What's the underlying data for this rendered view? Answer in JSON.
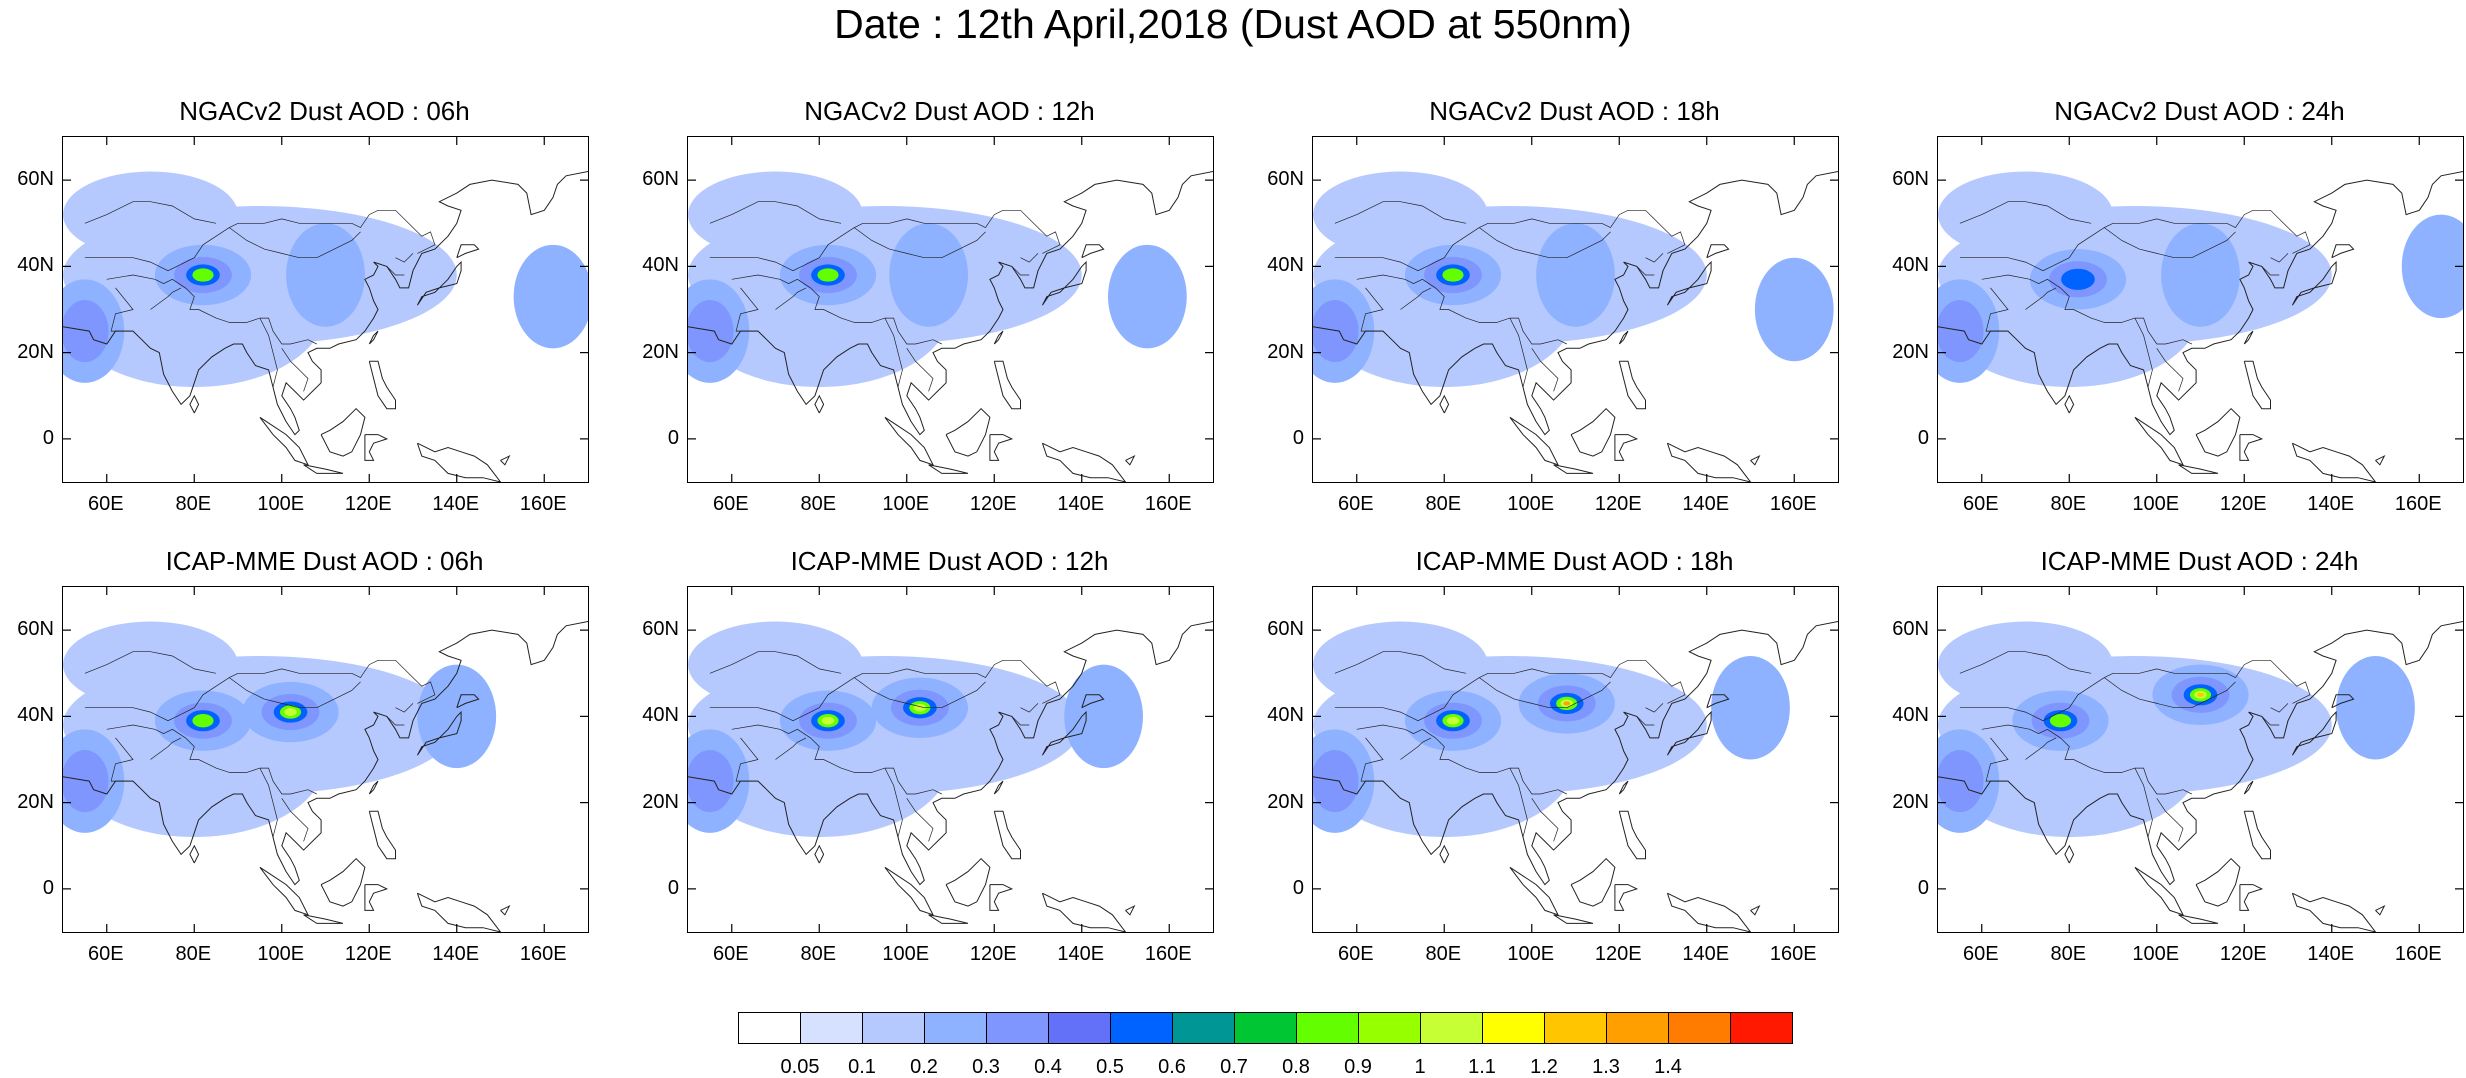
{
  "title": "Date : 12th April,2018 (Dust AOD at 550nm)",
  "rows": [
    {
      "model": "NGACv2",
      "panels": [
        {
          "title": "NGACv2 Dust AOD : 06h",
          "lead": "06h"
        },
        {
          "title": "NGACv2 Dust AOD : 12h",
          "lead": "12h"
        },
        {
          "title": "NGACv2 Dust AOD : 18h",
          "lead": "18h"
        },
        {
          "title": "NGACv2 Dust AOD : 24h",
          "lead": "24h"
        }
      ]
    },
    {
      "model": "ICAP-MME",
      "panels": [
        {
          "title": "ICAP-MME Dust AOD : 06h",
          "lead": "06h"
        },
        {
          "title": "ICAP-MME Dust AOD : 12h",
          "lead": "12h"
        },
        {
          "title": "ICAP-MME Dust AOD : 18h",
          "lead": "18h"
        },
        {
          "title": "ICAP-MME Dust AOD : 24h",
          "lead": "24h"
        }
      ]
    }
  ],
  "map": {
    "lon_range": [
      50,
      170
    ],
    "lat_range": [
      -10,
      70
    ],
    "lon_ticks": [
      "60E",
      "80E",
      "100E",
      "120E",
      "140E",
      "160E"
    ],
    "lon_tick_values": [
      60,
      80,
      100,
      120,
      140,
      160
    ],
    "lat_ticks": [
      "60N",
      "40N",
      "20N",
      "0"
    ],
    "lat_tick_values": [
      60,
      40,
      20,
      0
    ]
  },
  "colorbar": {
    "labels": [
      "0.05",
      "0.1",
      "0.2",
      "0.3",
      "0.4",
      "0.5",
      "0.6",
      "0.7",
      "0.8",
      "0.9",
      "1",
      "1.1",
      "1.2",
      "1.3",
      "1.4"
    ],
    "colors": [
      "#ffffff",
      "#d6e1ff",
      "#b5c9ff",
      "#8eb2ff",
      "#7f96ff",
      "#6370f8",
      "#0063ff",
      "#009696",
      "#00c633",
      "#63ff00",
      "#96ff00",
      "#c6ff33",
      "#ffff00",
      "#ffc600",
      "#ffa000",
      "#ff7c00",
      "#ff1900"
    ]
  },
  "chart_data": {
    "type": "heatmap",
    "title": "Date : 12th April,2018 (Dust AOD at 550nm)",
    "levels": [
      0.05,
      0.1,
      0.2,
      0.3,
      0.4,
      0.5,
      0.6,
      0.7,
      0.8,
      0.9,
      1,
      1.1,
      1.2,
      1.3,
      1.4
    ],
    "panels": [
      {
        "model": "NGACv2",
        "lead": "06h",
        "features": [
          {
            "lon": 82,
            "lat": 38,
            "value": 0.85
          },
          {
            "lon": 110,
            "lat": 38,
            "value": 0.25
          },
          {
            "lon": 55,
            "lat": 25,
            "value": 0.3
          },
          {
            "lon": 162,
            "lat": 33,
            "value": 0.25
          }
        ]
      },
      {
        "model": "NGACv2",
        "lead": "12h",
        "features": [
          {
            "lon": 82,
            "lat": 38,
            "value": 0.85
          },
          {
            "lon": 105,
            "lat": 38,
            "value": 0.25
          },
          {
            "lon": 55,
            "lat": 25,
            "value": 0.3
          },
          {
            "lon": 155,
            "lat": 33,
            "value": 0.2
          }
        ]
      },
      {
        "model": "NGACv2",
        "lead": "18h",
        "features": [
          {
            "lon": 82,
            "lat": 38,
            "value": 0.8
          },
          {
            "lon": 110,
            "lat": 38,
            "value": 0.22
          },
          {
            "lon": 55,
            "lat": 25,
            "value": 0.3
          },
          {
            "lon": 160,
            "lat": 30,
            "value": 0.2
          }
        ]
      },
      {
        "model": "NGACv2",
        "lead": "24h",
        "features": [
          {
            "lon": 82,
            "lat": 37,
            "value": 0.5
          },
          {
            "lon": 110,
            "lat": 38,
            "value": 0.22
          },
          {
            "lon": 55,
            "lat": 25,
            "value": 0.3
          },
          {
            "lon": 165,
            "lat": 40,
            "value": 0.2
          }
        ]
      },
      {
        "model": "ICAP-MME",
        "lead": "06h",
        "features": [
          {
            "lon": 82,
            "lat": 39,
            "value": 0.95
          },
          {
            "lon": 102,
            "lat": 41,
            "value": 1.0
          },
          {
            "lon": 55,
            "lat": 25,
            "value": 0.3
          },
          {
            "lon": 140,
            "lat": 40,
            "value": 0.2
          }
        ]
      },
      {
        "model": "ICAP-MME",
        "lead": "12h",
        "features": [
          {
            "lon": 82,
            "lat": 39,
            "value": 1.05
          },
          {
            "lon": 103,
            "lat": 42,
            "value": 1.15
          },
          {
            "lon": 55,
            "lat": 25,
            "value": 0.3
          },
          {
            "lon": 145,
            "lat": 40,
            "value": 0.2
          }
        ]
      },
      {
        "model": "ICAP-MME",
        "lead": "18h",
        "features": [
          {
            "lon": 82,
            "lat": 39,
            "value": 1.0
          },
          {
            "lon": 108,
            "lat": 43,
            "value": 1.3
          },
          {
            "lon": 55,
            "lat": 25,
            "value": 0.3
          },
          {
            "lon": 150,
            "lat": 42,
            "value": 0.2
          }
        ]
      },
      {
        "model": "ICAP-MME",
        "lead": "24h",
        "features": [
          {
            "lon": 78,
            "lat": 39,
            "value": 0.9
          },
          {
            "lon": 110,
            "lat": 45,
            "value": 1.2
          },
          {
            "lon": 55,
            "lat": 25,
            "value": 0.3
          },
          {
            "lon": 150,
            "lat": 42,
            "value": 0.2
          }
        ]
      }
    ]
  }
}
